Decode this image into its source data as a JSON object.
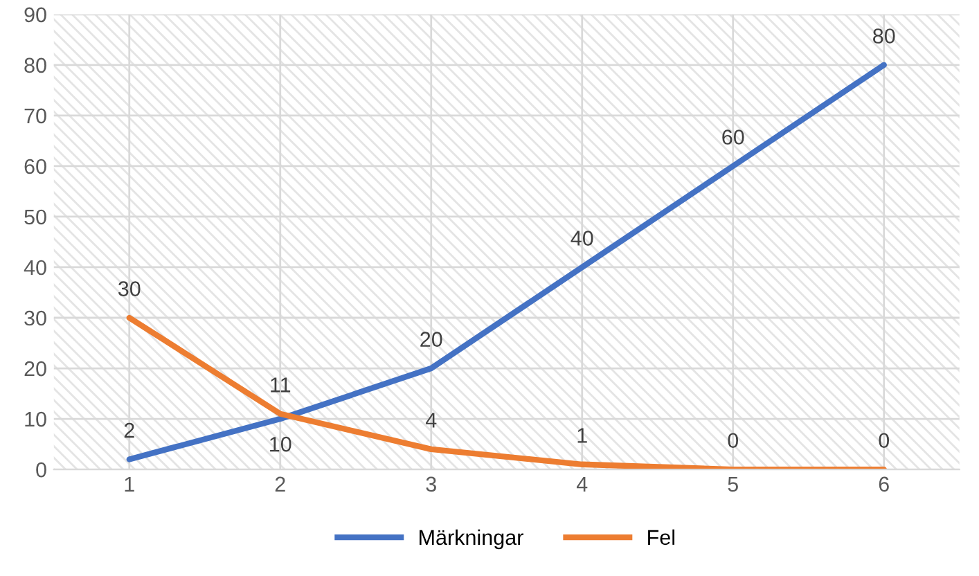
{
  "chart_data": {
    "type": "line",
    "categories": [
      "1",
      "2",
      "3",
      "4",
      "5",
      "6"
    ],
    "series": [
      {
        "name": "Märkningar",
        "color": "#4472c4",
        "values": [
          2,
          10,
          20,
          40,
          60,
          80
        ]
      },
      {
        "name": "Fel",
        "color": "#ed7d31",
        "values": [
          30,
          11,
          4,
          1,
          0,
          0
        ]
      }
    ],
    "ylim": [
      0,
      90
    ],
    "yticks": [
      0,
      10,
      20,
      30,
      40,
      50,
      60,
      70,
      80,
      90
    ],
    "grid": true,
    "legend": "bottom",
    "data_labels": true,
    "marker": "none",
    "line_style": "solid"
  }
}
